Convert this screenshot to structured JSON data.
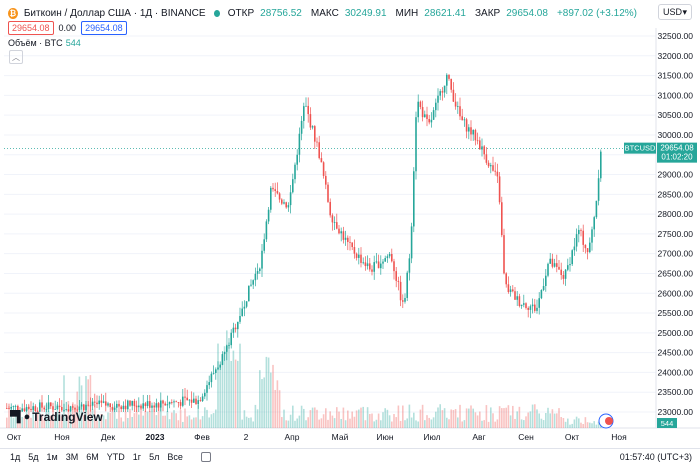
{
  "legend": {
    "title": "Биткоин / Доллар США · 1Д · BINANCE",
    "open_label": "ОТКР",
    "open": "28756.52",
    "high_label": "МАКС",
    "high": "30249.91",
    "low_label": "МИН",
    "low": "28621.41",
    "close_label": "ЗАКР",
    "close": "29654.08",
    "change": "+897.02 (+3.12%)"
  },
  "currency": "USD",
  "trade": {
    "sell": "29654.08",
    "spread": "0.00",
    "buy": "29654.08"
  },
  "volume": {
    "label": "Объём · BTC",
    "value": "544"
  },
  "price_scale": {
    "ticks": [
      "32500.00",
      "32000.00",
      "31500.00",
      "31000.00",
      "30500.00",
      "30000.00",
      "29500.00",
      "29000.00",
      "28500.00",
      "28000.00",
      "27500.00",
      "27000.00",
      "26500.00",
      "26000.00",
      "25500.00",
      "25000.00",
      "24500.00",
      "24000.00",
      "23500.00",
      "23000.00"
    ],
    "symbol_tag": "BTCUSD",
    "last_price": "29654.08",
    "countdown": "01:02:20",
    "volume_tag": "544"
  },
  "time_axis": [
    "Окт",
    "Ноя",
    "Дек",
    "2023",
    "Фев",
    "2",
    "Апр",
    "Май",
    "Июн",
    "Июл",
    "Авг",
    "Сен",
    "Окт",
    "Ноя"
  ],
  "timeframes": [
    "1д",
    "5д",
    "1м",
    "3М",
    "6М",
    "YTD",
    "1г",
    "5л",
    "Все"
  ],
  "clock": "01:57:40 (UTC+3)",
  "branding": "TradingView",
  "colors": {
    "up": "#26a69a",
    "down": "#ef5350"
  }
}
